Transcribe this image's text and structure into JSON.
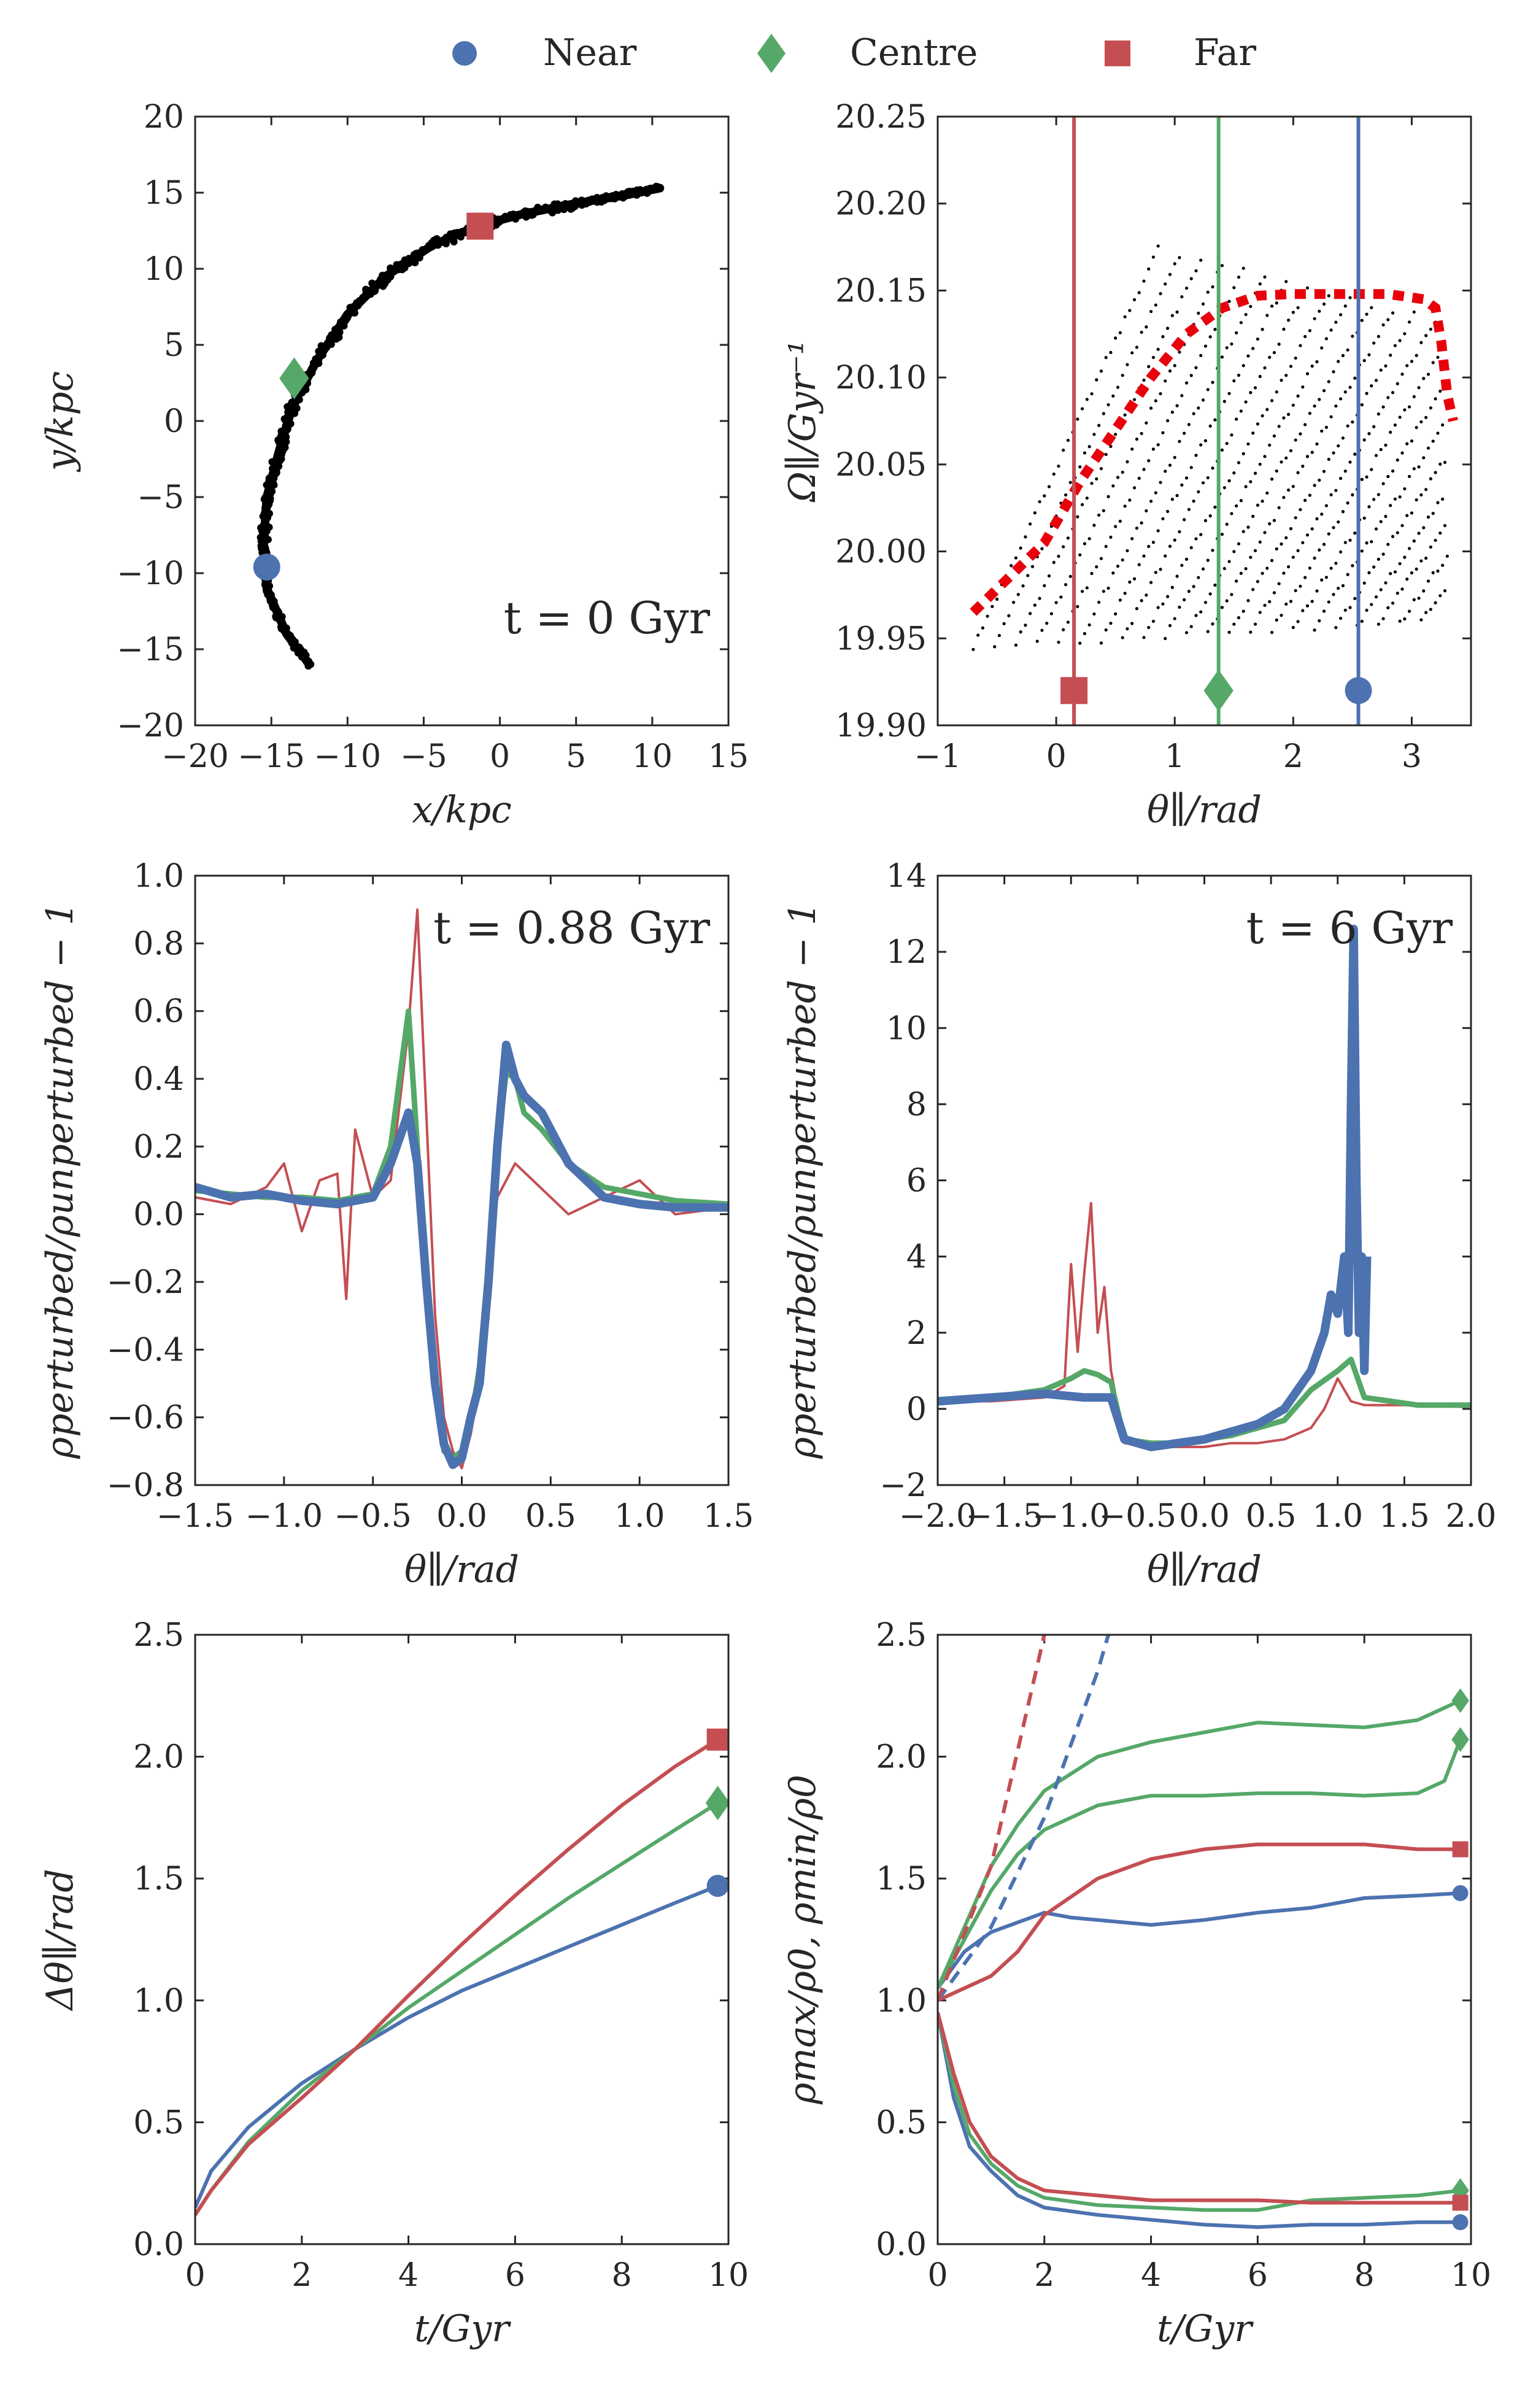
{
  "colors": {
    "near": "#4c72b0",
    "centre": "#55a868",
    "far": "#c44e52",
    "model": "#e8000b",
    "stream": "#000000"
  },
  "legend": {
    "items": [
      {
        "label": "Near",
        "color": "#4c72b0",
        "marker": "circle"
      },
      {
        "label": "Centre",
        "color": "#55a868",
        "marker": "diamond"
      },
      {
        "label": "Far",
        "color": "#c44e52",
        "marker": "square"
      }
    ]
  },
  "chart_data": [
    {
      "id": "a",
      "type": "scatter",
      "xlabel": "x/kpc",
      "ylabel": "y/kpc",
      "xlim": [
        -20,
        15
      ],
      "ylim": [
        -20,
        20
      ],
      "xticks": [
        -20,
        -15,
        -10,
        -5,
        0,
        5,
        10,
        15
      ],
      "yticks": [
        -20,
        -15,
        -10,
        -5,
        0,
        5,
        10,
        15,
        20
      ],
      "annotation": "t = 0 Gyr",
      "stream_track": [
        [
          -12.5,
          -16
        ],
        [
          -14,
          -14
        ],
        [
          -15.3,
          -11
        ],
        [
          -15.5,
          -8
        ],
        [
          -15.3,
          -5
        ],
        [
          -14.5,
          -2
        ],
        [
          -13.6,
          1
        ],
        [
          -12,
          4
        ],
        [
          -10,
          7
        ],
        [
          -7.5,
          9.5
        ],
        [
          -4.5,
          11.5
        ],
        [
          -1.5,
          12.8
        ],
        [
          1.5,
          13.6
        ],
        [
          5,
          14.3
        ],
        [
          8,
          14.8
        ],
        [
          10.5,
          15.3
        ]
      ],
      "markers": [
        {
          "series": "Near",
          "x": -15.3,
          "y": -9.6
        },
        {
          "series": "Centre",
          "x": -13.5,
          "y": 2.8
        },
        {
          "series": "Far",
          "x": -1.3,
          "y": 12.8
        }
      ]
    },
    {
      "id": "b",
      "type": "scatter",
      "xlabel": "θ∥/rad",
      "ylabel": "Ω∥/Gyr⁻¹",
      "xlim": [
        -1.0,
        3.5
      ],
      "ylim": [
        19.9,
        20.25
      ],
      "xticks": [
        -1,
        0,
        1,
        2,
        3
      ],
      "yticks": [
        19.9,
        19.95,
        20.0,
        20.05,
        20.1,
        20.15,
        20.2,
        20.25
      ],
      "model_track": [
        [
          -0.7,
          19.965
        ],
        [
          -0.4,
          19.985
        ],
        [
          -0.1,
          20.005
        ],
        [
          0.2,
          20.04
        ],
        [
          0.5,
          20.07
        ],
        [
          0.8,
          20.1
        ],
        [
          1.1,
          20.125
        ],
        [
          1.4,
          20.14
        ],
        [
          1.7,
          20.147
        ],
        [
          2.0,
          20.148
        ],
        [
          2.4,
          20.148
        ],
        [
          2.8,
          20.148
        ],
        [
          3.1,
          20.145
        ],
        [
          3.2,
          20.14
        ],
        [
          3.25,
          20.12
        ],
        [
          3.3,
          20.09
        ],
        [
          3.35,
          20.075
        ]
      ],
      "vlines": [
        {
          "series": "Far",
          "x": 0.15,
          "marker_y": 19.92
        },
        {
          "series": "Centre",
          "x": 1.37,
          "marker_y": 19.92
        },
        {
          "series": "Near",
          "x": 2.55,
          "marker_y": 19.92
        }
      ]
    },
    {
      "id": "c",
      "type": "line",
      "xlabel": "θ∥/rad",
      "ylabel": "ρperturbed/ρunperturbed − 1",
      "xlim": [
        -1.5,
        1.5
      ],
      "ylim": [
        -0.8,
        1.0
      ],
      "xticks": [
        -1.5,
        -1.0,
        -0.5,
        0.0,
        0.5,
        1.0,
        1.5
      ],
      "yticks": [
        -0.8,
        -0.6,
        -0.4,
        -0.2,
        0.0,
        0.2,
        0.4,
        0.6,
        0.8,
        1.0
      ],
      "annotation": "t = 0.88 Gyr",
      "series": [
        {
          "name": "Near",
          "x": [
            -1.5,
            -1.3,
            -1.1,
            -0.9,
            -0.7,
            -0.5,
            -0.4,
            -0.3,
            -0.25,
            -0.2,
            -0.15,
            -0.1,
            -0.05,
            0.0,
            0.05,
            0.1,
            0.15,
            0.2,
            0.25,
            0.3,
            0.35,
            0.45,
            0.6,
            0.8,
            1.0,
            1.2,
            1.5
          ],
          "y": [
            0.08,
            0.05,
            0.06,
            0.04,
            0.03,
            0.05,
            0.15,
            0.3,
            0.15,
            -0.2,
            -0.5,
            -0.68,
            -0.74,
            -0.72,
            -0.6,
            -0.5,
            -0.2,
            0.2,
            0.5,
            0.4,
            0.35,
            0.3,
            0.15,
            0.05,
            0.03,
            0.02,
            0.02
          ]
        },
        {
          "name": "Centre",
          "x": [
            -1.5,
            -1.3,
            -1.1,
            -0.9,
            -0.7,
            -0.5,
            -0.4,
            -0.3,
            -0.25,
            -0.2,
            -0.15,
            -0.1,
            -0.05,
            0.0,
            0.05,
            0.1,
            0.15,
            0.2,
            0.25,
            0.3,
            0.35,
            0.45,
            0.6,
            0.8,
            1.0,
            1.2,
            1.5
          ],
          "y": [
            0.07,
            0.06,
            0.05,
            0.05,
            0.04,
            0.06,
            0.2,
            0.6,
            0.2,
            -0.2,
            -0.5,
            -0.7,
            -0.72,
            -0.7,
            -0.62,
            -0.45,
            -0.15,
            0.2,
            0.42,
            0.4,
            0.3,
            0.25,
            0.15,
            0.08,
            0.06,
            0.04,
            0.03
          ]
        },
        {
          "name": "Far",
          "x": [
            -1.5,
            -1.3,
            -1.1,
            -1.0,
            -0.9,
            -0.8,
            -0.7,
            -0.65,
            -0.6,
            -0.5,
            -0.4,
            -0.3,
            -0.25,
            -0.2,
            -0.15,
            -0.1,
            -0.05,
            0.0,
            0.05,
            0.1,
            0.15,
            0.2,
            0.3,
            0.4,
            0.6,
            0.8,
            1.0,
            1.2,
            1.5
          ],
          "y": [
            0.05,
            0.03,
            0.08,
            0.15,
            -0.05,
            0.1,
            0.12,
            -0.25,
            0.25,
            0.05,
            0.1,
            0.55,
            0.9,
            0.3,
            -0.3,
            -0.6,
            -0.7,
            -0.75,
            -0.65,
            -0.5,
            -0.2,
            0.05,
            0.15,
            0.1,
            0.0,
            0.05,
            0.1,
            0.0,
            0.02
          ]
        }
      ]
    },
    {
      "id": "d",
      "type": "line",
      "xlabel": "θ∥/rad",
      "ylabel": "ρperturbed/ρunperturbed − 1",
      "xlim": [
        -2.0,
        2.0
      ],
      "ylim": [
        -2,
        14
      ],
      "xticks": [
        -2.0,
        -1.5,
        -1.0,
        -0.5,
        0.0,
        0.5,
        1.0,
        1.5,
        2.0
      ],
      "yticks": [
        -2,
        0,
        2,
        4,
        6,
        8,
        10,
        12,
        14
      ],
      "annotation": "t = 6 Gyr",
      "series": [
        {
          "name": "Near",
          "x": [
            -2.0,
            -1.6,
            -1.2,
            -0.9,
            -0.7,
            -0.6,
            -0.4,
            -0.2,
            0.0,
            0.2,
            0.4,
            0.6,
            0.7,
            0.8,
            0.9,
            0.95,
            1.0,
            1.05,
            1.08,
            1.1,
            1.12,
            1.14,
            1.16,
            1.18,
            1.2,
            1.22
          ],
          "y": [
            0.2,
            0.3,
            0.4,
            0.3,
            0.3,
            -0.8,
            -1.0,
            -0.9,
            -0.8,
            -0.6,
            -0.4,
            0.0,
            0.5,
            1.0,
            2.0,
            3.0,
            2.5,
            4.0,
            2.0,
            8.0,
            12.6,
            6.0,
            2.0,
            4.0,
            1.0,
            4.0
          ]
        },
        {
          "name": "Centre",
          "x": [
            -2.0,
            -1.6,
            -1.2,
            -1.0,
            -0.9,
            -0.8,
            -0.7,
            -0.6,
            -0.4,
            -0.2,
            0.0,
            0.2,
            0.4,
            0.6,
            0.8,
            1.0,
            1.1,
            1.2,
            1.4,
            1.6,
            2.0
          ],
          "y": [
            0.2,
            0.3,
            0.5,
            0.8,
            1.0,
            0.9,
            0.7,
            -0.8,
            -0.9,
            -0.9,
            -0.8,
            -0.7,
            -0.5,
            -0.3,
            0.5,
            1.0,
            1.3,
            0.3,
            0.2,
            0.1,
            0.1
          ]
        },
        {
          "name": "Far",
          "x": [
            -2.0,
            -1.6,
            -1.2,
            -1.05,
            -1.0,
            -0.95,
            -0.9,
            -0.85,
            -0.8,
            -0.75,
            -0.7,
            -0.6,
            -0.4,
            -0.2,
            0.0,
            0.2,
            0.4,
            0.6,
            0.8,
            0.9,
            1.0,
            1.1,
            1.2,
            1.5,
            2.0
          ],
          "y": [
            0.2,
            0.2,
            0.3,
            0.6,
            3.8,
            1.5,
            3.6,
            5.4,
            2.0,
            3.2,
            1.0,
            -0.9,
            -1.0,
            -1.0,
            -1.0,
            -0.9,
            -0.9,
            -0.8,
            -0.5,
            0.0,
            0.8,
            0.2,
            0.1,
            0.1,
            0.05
          ]
        }
      ]
    },
    {
      "id": "e",
      "type": "line",
      "xlabel": "t/Gyr",
      "ylabel": "Δθ∥/rad",
      "xlim": [
        0,
        10
      ],
      "ylim": [
        0.0,
        2.5
      ],
      "xticks": [
        0,
        2,
        4,
        6,
        8,
        10
      ],
      "yticks": [
        0.0,
        0.5,
        1.0,
        1.5,
        2.0,
        2.5
      ],
      "series": [
        {
          "name": "Near",
          "x": [
            0,
            0.3,
            1,
            2,
            3,
            4,
            5,
            6,
            7,
            8,
            9,
            9.8
          ],
          "y": [
            0.15,
            0.3,
            0.48,
            0.66,
            0.8,
            0.93,
            1.04,
            1.13,
            1.22,
            1.31,
            1.4,
            1.47
          ]
        },
        {
          "name": "Centre",
          "x": [
            0,
            0.3,
            1,
            2,
            3,
            4,
            5,
            6,
            7,
            8,
            9,
            9.8
          ],
          "y": [
            0.12,
            0.22,
            0.42,
            0.63,
            0.8,
            0.97,
            1.12,
            1.27,
            1.42,
            1.56,
            1.7,
            1.81
          ]
        },
        {
          "name": "Far",
          "x": [
            0,
            0.3,
            1,
            2,
            3,
            4,
            5,
            6,
            7,
            8,
            9,
            9.8
          ],
          "y": [
            0.12,
            0.22,
            0.41,
            0.6,
            0.8,
            1.02,
            1.23,
            1.43,
            1.62,
            1.8,
            1.96,
            2.07
          ]
        }
      ],
      "end_markers": [
        {
          "series": "Near",
          "x": 9.8,
          "y": 1.47
        },
        {
          "series": "Centre",
          "x": 9.8,
          "y": 1.81
        },
        {
          "series": "Far",
          "x": 9.8,
          "y": 2.07
        }
      ]
    },
    {
      "id": "f",
      "type": "line",
      "xlabel": "t/Gyr",
      "ylabel": "ρmax/ρ0, ρmin/ρ0",
      "xlim": [
        0,
        10
      ],
      "ylim": [
        0.0,
        2.5
      ],
      "xticks": [
        0,
        2,
        4,
        6,
        8,
        10
      ],
      "yticks": [
        0.0,
        0.5,
        1.0,
        1.5,
        2.0,
        2.5
      ],
      "series": [
        {
          "name": "Near max",
          "color": "near",
          "x": [
            0,
            0.5,
            1,
            1.5,
            2,
            2.5,
            3,
            4,
            5,
            6,
            7,
            8,
            9,
            9.8
          ],
          "y": [
            1.05,
            1.2,
            1.28,
            1.32,
            1.36,
            1.34,
            1.33,
            1.31,
            1.33,
            1.36,
            1.38,
            1.42,
            1.43,
            1.44
          ]
        },
        {
          "name": "Centre max 1",
          "color": "centre",
          "x": [
            0,
            0.5,
            1,
            1.5,
            2,
            3,
            4,
            5,
            6,
            7,
            8,
            9,
            9.8
          ],
          "y": [
            1.05,
            1.3,
            1.55,
            1.72,
            1.86,
            2.0,
            2.06,
            2.1,
            2.14,
            2.13,
            2.12,
            2.15,
            2.23
          ]
        },
        {
          "name": "Centre max 2",
          "color": "centre",
          "x": [
            0,
            0.5,
            1,
            1.5,
            2,
            3,
            4,
            5,
            6,
            7,
            8,
            9,
            9.5,
            9.8
          ],
          "y": [
            1.05,
            1.25,
            1.45,
            1.6,
            1.7,
            1.8,
            1.84,
            1.84,
            1.85,
            1.85,
            1.84,
            1.85,
            1.9,
            2.07
          ]
        },
        {
          "name": "Far max",
          "color": "far",
          "x": [
            0,
            0.5,
            1,
            1.5,
            2,
            3,
            4,
            5,
            6,
            7,
            8,
            9,
            9.8
          ],
          "y": [
            1.0,
            1.05,
            1.1,
            1.2,
            1.35,
            1.5,
            1.58,
            1.62,
            1.64,
            1.64,
            1.64,
            1.62,
            1.62
          ]
        },
        {
          "name": "Near min",
          "color": "near",
          "x": [
            0,
            0.3,
            0.6,
            1,
            1.5,
            2,
            3,
            4,
            5,
            6,
            7,
            8,
            9,
            9.8
          ],
          "y": [
            0.95,
            0.6,
            0.4,
            0.3,
            0.2,
            0.15,
            0.12,
            0.1,
            0.08,
            0.07,
            0.08,
            0.08,
            0.09,
            0.09
          ]
        },
        {
          "name": "Centre min",
          "color": "centre",
          "x": [
            0,
            0.3,
            0.6,
            1,
            1.5,
            2,
            3,
            4,
            5,
            6,
            7,
            8,
            9,
            9.8
          ],
          "y": [
            0.95,
            0.65,
            0.45,
            0.33,
            0.24,
            0.19,
            0.16,
            0.15,
            0.14,
            0.14,
            0.18,
            0.19,
            0.2,
            0.22
          ]
        },
        {
          "name": "Far min",
          "color": "far",
          "x": [
            0,
            0.3,
            0.6,
            1,
            1.5,
            2,
            3,
            4,
            5,
            6,
            7,
            8,
            9,
            9.8
          ],
          "y": [
            0.95,
            0.7,
            0.5,
            0.36,
            0.27,
            0.22,
            0.2,
            0.18,
            0.18,
            0.18,
            0.17,
            0.17,
            0.17,
            0.17
          ]
        },
        {
          "name": "Near model",
          "color": "near",
          "dashed": true,
          "x": [
            0,
            1,
            2,
            3,
            3.2
          ],
          "y": [
            1.0,
            1.3,
            1.75,
            2.35,
            2.5
          ]
        },
        {
          "name": "Far model",
          "color": "far",
          "dashed": true,
          "x": [
            0,
            1,
            2,
            1.95
          ],
          "y": [
            1.0,
            1.55,
            2.5,
            2.5
          ]
        }
      ],
      "end_markers": [
        {
          "series": "Centre",
          "x": 9.8,
          "y": 2.23
        },
        {
          "series": "Centre",
          "x": 9.8,
          "y": 2.07
        },
        {
          "series": "Far",
          "x": 9.8,
          "y": 1.62
        },
        {
          "series": "Near",
          "x": 9.8,
          "y": 1.44
        },
        {
          "series": "Centre",
          "x": 9.8,
          "y": 0.22
        },
        {
          "series": "Far",
          "x": 9.8,
          "y": 0.17
        },
        {
          "series": "Near",
          "x": 9.8,
          "y": 0.09
        }
      ]
    }
  ]
}
